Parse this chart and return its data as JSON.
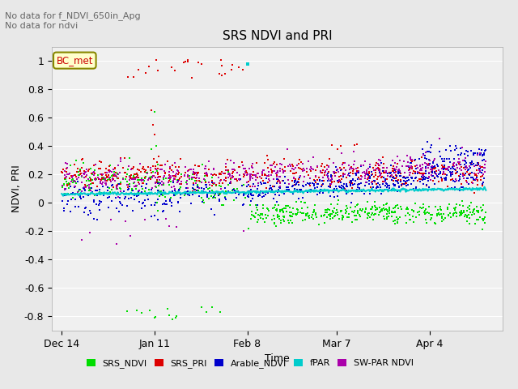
{
  "title": "SRS NDVI and PRI",
  "xlabel": "Time",
  "ylabel": "NDVI, PRI",
  "ylim": [
    -0.9,
    1.1
  ],
  "yticks": [
    1.0,
    0.8,
    0.6,
    0.4,
    0.2,
    0.0,
    -0.2,
    -0.4,
    -0.6,
    -0.8
  ],
  "annotation_text": "No data for f_NDVI_650in_Apg\nNo data for ndvi",
  "bc_met_label": "BC_met",
  "colors": {
    "SRS_NDVI": "#00dd00",
    "SRS_PRI": "#dd0000",
    "Arable_NDVI": "#0000cc",
    "fPAR": "#00cccc",
    "SW-PAR NDVI": "#aa00aa"
  },
  "legend_labels": [
    "SRS_NDVI",
    "SRS_PRI",
    "Arable_NDVI",
    "fPAR",
    "SW-PAR NDVI"
  ],
  "background_color": "#e8e8e8",
  "plot_bg_color": "#f0f0f0",
  "seed": 42
}
